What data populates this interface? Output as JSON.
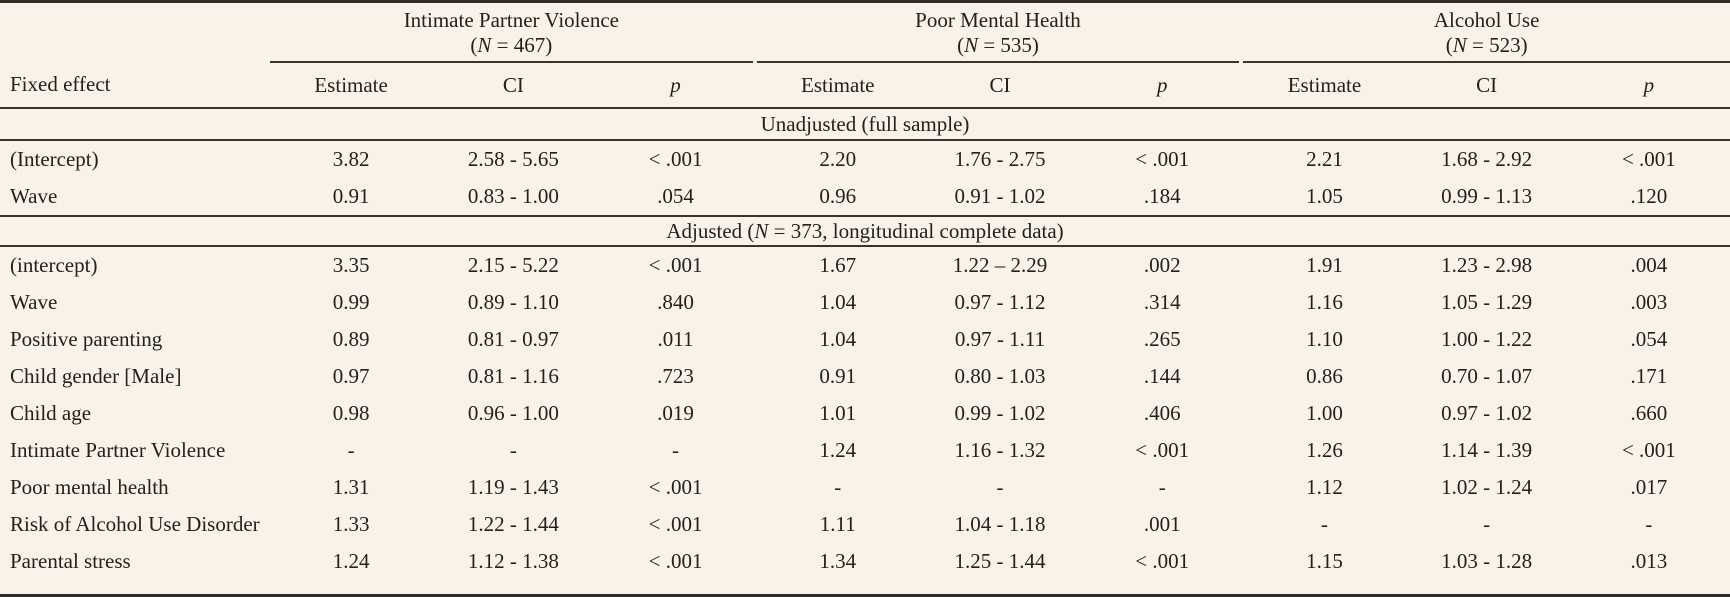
{
  "table": {
    "col1_header": "Fixed effect",
    "subheaders": {
      "estimate": "Estimate",
      "ci": "CI",
      "p": "p"
    },
    "groups": [
      {
        "title": "Intimate Partner Violence",
        "n_open": "(",
        "n_symbol": "N",
        "n_rest": " = 467)"
      },
      {
        "title": "Poor Mental Health",
        "n_open": "(",
        "n_symbol": "N",
        "n_rest": " = 535)"
      },
      {
        "title": "Alcohol Use",
        "n_open": "(",
        "n_symbol": "N",
        "n_rest": " = 523)"
      }
    ],
    "sections": [
      {
        "title": "Unadjusted (full sample)",
        "rows": [
          {
            "label": "(Intercept)",
            "cells": [
              "3.82",
              "2.58 - 5.65",
              "< .001",
              "2.20",
              "1.76 - 2.75",
              "< .001",
              "2.21",
              "1.68 - 2.92",
              "< .001"
            ]
          },
          {
            "label": "Wave",
            "cells": [
              "0.91",
              "0.83 - 1.00",
              ".054",
              "0.96",
              "0.91 - 1.02",
              ".184",
              "1.05",
              "0.99 - 1.13",
              ".120"
            ]
          }
        ]
      },
      {
        "title_prefix": "Adjusted (",
        "title_n": "N",
        "title_suffix": " = 373, longitudinal complete data)",
        "rows": [
          {
            "label": "(intercept)",
            "cells": [
              "3.35",
              "2.15 - 5.22",
              "< .001",
              "1.67",
              "1.22 – 2.29",
              ".002",
              "1.91",
              "1.23 - 2.98",
              ".004"
            ]
          },
          {
            "label": "Wave",
            "cells": [
              "0.99",
              "0.89 - 1.10",
              ".840",
              "1.04",
              "0.97 - 1.12",
              ".314",
              "1.16",
              "1.05 - 1.29",
              ".003"
            ]
          },
          {
            "label": "Positive parenting",
            "cells": [
              "0.89",
              "0.81 - 0.97",
              ".011",
              "1.04",
              "0.97 - 1.11",
              ".265",
              "1.10",
              "1.00 - 1.22",
              ".054"
            ]
          },
          {
            "label": "Child gender [Male]",
            "cells": [
              "0.97",
              "0.81 - 1.16",
              ".723",
              "0.91",
              "0.80 - 1.03",
              ".144",
              "0.86",
              "0.70 - 1.07",
              ".171"
            ]
          },
          {
            "label": "Child age",
            "cells": [
              "0.98",
              "0.96 - 1.00",
              ".019",
              "1.01",
              "0.99 - 1.02",
              ".406",
              "1.00",
              "0.97 - 1.02",
              ".660"
            ]
          },
          {
            "label": "Intimate Partner Violence",
            "cells": [
              "-",
              "-",
              "-",
              "1.24",
              "1.16 - 1.32",
              "< .001",
              "1.26",
              "1.14 - 1.39",
              "< .001"
            ]
          },
          {
            "label": "Poor mental health",
            "cells": [
              "1.31",
              "1.19 - 1.43",
              "< .001",
              "-",
              "-",
              "-",
              "1.12",
              "1.02 - 1.24",
              ".017"
            ]
          },
          {
            "label": "Risk of Alcohol Use Disorder",
            "cells": [
              "1.33",
              "1.22 - 1.44",
              "< .001",
              "1.11",
              "1.04 - 1.18",
              ".001",
              "-",
              "-",
              "-"
            ]
          },
          {
            "label": "Parental stress",
            "cells": [
              "1.24",
              "1.12 - 1.38",
              "< .001",
              "1.34",
              "1.25 - 1.44",
              "< .001",
              "1.15",
              "1.03 - 1.28",
              ".013"
            ]
          }
        ]
      }
    ],
    "colors": {
      "background": "#f8f2e9",
      "text": "#23211d",
      "rule": "#38352f"
    }
  }
}
